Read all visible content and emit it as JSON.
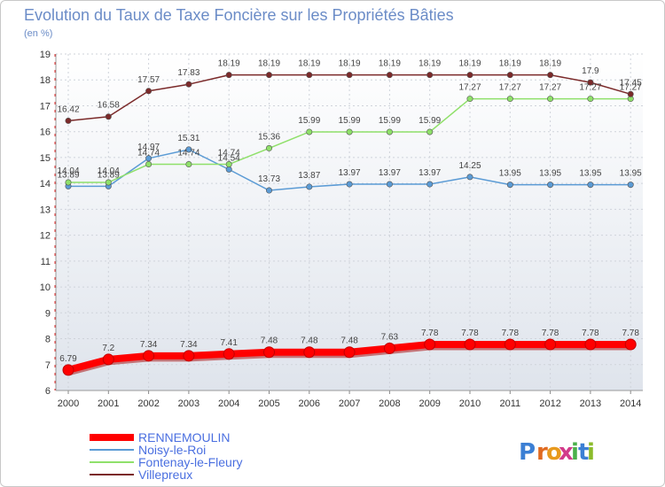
{
  "chart_data": {
    "type": "line",
    "title": "Evolution du Taux de Taxe Foncière sur les Propriétés Bâties",
    "subtitle": "(en %)",
    "x": [
      "2000",
      "2001",
      "2002",
      "2003",
      "2004",
      "2005",
      "2006",
      "2007",
      "2008",
      "2009",
      "2010",
      "2011",
      "2012",
      "2013",
      "2014"
    ],
    "yticks": [
      "6",
      "7",
      "8",
      "9",
      "10",
      "11",
      "12",
      "13",
      "14",
      "15",
      "16",
      "17",
      "18",
      "19"
    ],
    "ylim": [
      6,
      19
    ],
    "grid": true,
    "legend_position": "bottom-left",
    "series": [
      {
        "name": "RENNEMOULIN",
        "color": "#ff0000",
        "values": [
          6.79,
          7.2,
          7.34,
          7.34,
          7.41,
          7.48,
          7.48,
          7.48,
          7.63,
          7.78,
          7.78,
          7.78,
          7.78,
          7.78,
          7.78
        ],
        "labels": [
          "6.79",
          "7.2",
          "7.34",
          "7.34",
          "7.41",
          "7.48",
          "7.48",
          "7.48",
          "7.63",
          "7.78",
          "7.78",
          "7.78",
          "7.78",
          "7.78",
          "7.78"
        ]
      },
      {
        "name": "Noisy-le-Roi",
        "color": "#5b9bd5",
        "values": [
          13.89,
          13.89,
          14.97,
          15.31,
          14.54,
          13.73,
          13.87,
          13.97,
          13.97,
          13.97,
          14.25,
          13.95,
          13.95,
          13.95,
          13.95
        ],
        "labels": [
          "13.89",
          "13.89",
          "14.97",
          "15.31",
          "14.54",
          "13.73",
          "13.87",
          "13.97",
          "13.97",
          "13.97",
          "14.25",
          "13.95",
          "13.95",
          "13.95",
          "13.95"
        ]
      },
      {
        "name": "Fontenay-le-Fleury",
        "color": "#8fe06a",
        "values": [
          14.04,
          14.04,
          14.74,
          14.74,
          14.74,
          15.36,
          15.99,
          15.99,
          15.99,
          15.99,
          17.27,
          17.27,
          17.27,
          17.27,
          17.27
        ],
        "labels": [
          "14.04",
          "14.04",
          "14.74",
          "14.74",
          "14.74",
          "15.36",
          "15.99",
          "15.99",
          "15.99",
          "15.99",
          "17.27",
          "17.27",
          "17.27",
          "17.27",
          "17.27"
        ]
      },
      {
        "name": "Villepreux",
        "color": "#7b2a2a",
        "values": [
          16.42,
          16.58,
          17.57,
          17.83,
          18.19,
          18.19,
          18.19,
          18.19,
          18.19,
          18.19,
          18.19,
          18.19,
          18.19,
          17.9,
          17.45
        ],
        "labels": [
          "16.42",
          "16.58",
          "17.57",
          "17.83",
          "18.19",
          "18.19",
          "18.19",
          "18.19",
          "18.19",
          "18.19",
          "18.19",
          "18.19",
          "18.19",
          "17.9",
          "17.45"
        ]
      }
    ]
  },
  "brand": {
    "letters": [
      "P",
      "r",
      "o",
      "x",
      "i",
      "t",
      "i"
    ],
    "colors": [
      "#3b7fd4",
      "#e06a20",
      "#e89a1e",
      "#d23a8a",
      "#4ab04a",
      "#3b7fd4",
      "#8bbb2a"
    ]
  }
}
